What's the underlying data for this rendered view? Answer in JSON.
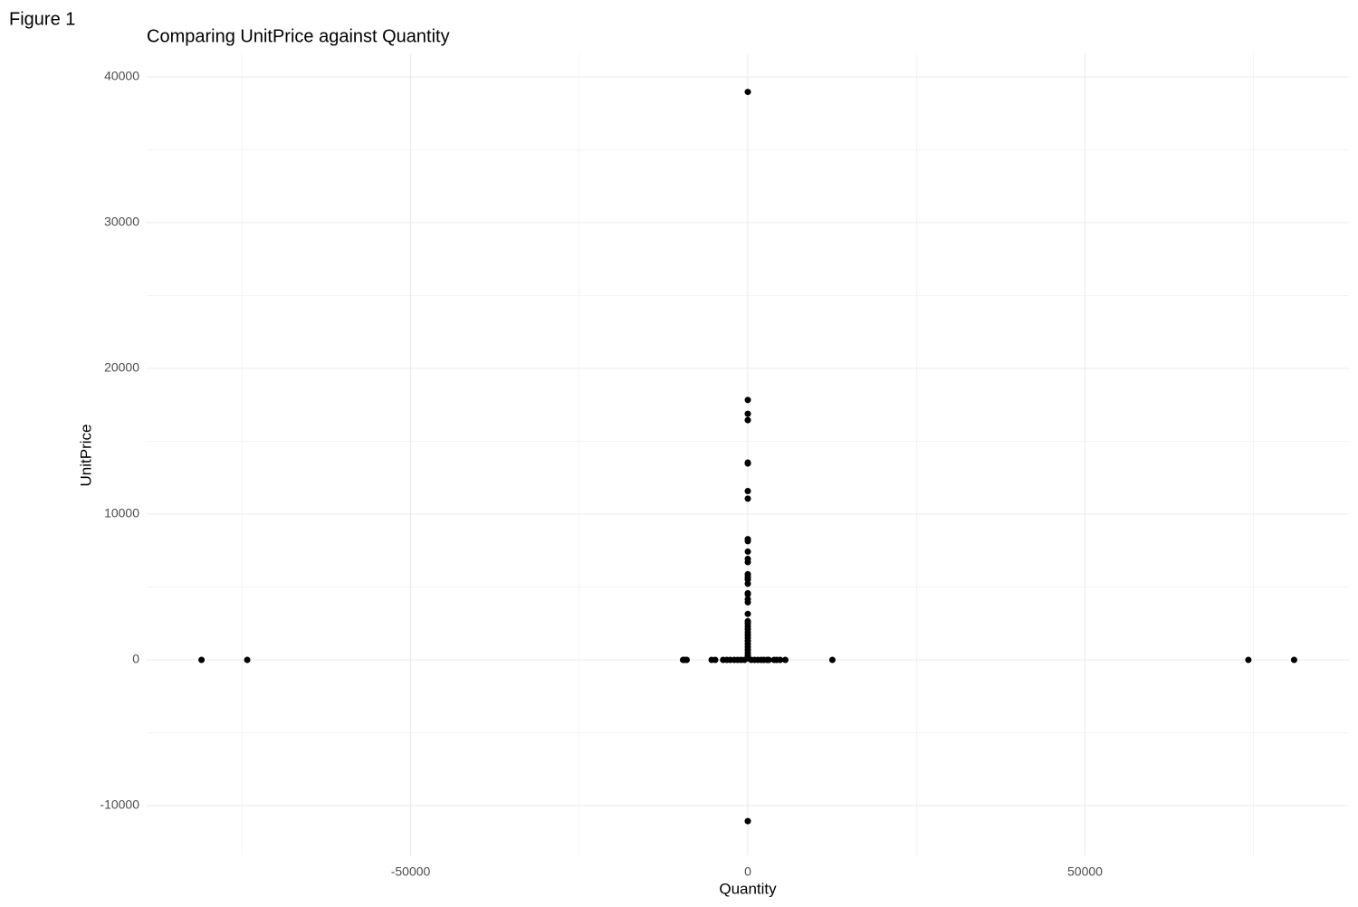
{
  "figure_label": "Figure 1",
  "chart_data": {
    "type": "scatter",
    "title": "Comparing UnitPrice against Quantity",
    "x_label": "Quantity",
    "y_label": "UnitPrice",
    "color": "#000000",
    "grid": true,
    "xlim": [
      -89128,
      89128
    ],
    "ylim": [
      -13416,
      41553
    ],
    "xticks": [
      -50000,
      0,
      50000
    ],
    "yticks": [
      -10000,
      0,
      10000,
      20000,
      30000,
      40000
    ],
    "x_minor_grid": [
      -75000,
      -25000,
      25000,
      75000
    ],
    "y_minor_grid": [
      -5000,
      5000,
      15000,
      25000,
      35000
    ],
    "x": [
      0,
      0,
      0,
      0,
      0,
      0,
      0,
      0,
      0,
      0,
      0,
      0,
      0,
      0,
      0,
      0,
      0,
      0,
      0,
      0,
      0,
      0,
      0,
      0,
      0,
      0,
      0,
      0,
      0,
      0,
      0,
      0,
      0,
      0,
      0,
      0,
      0,
      -80995,
      -74215,
      80995,
      74215,
      12540,
      -9600,
      -9360,
      -9058,
      -5368,
      -4830,
      -3667,
      -3114,
      -2600,
      -2000,
      -1500,
      -1000,
      -500,
      500,
      1000,
      1500,
      2000,
      2400,
      2880,
      3114,
      3906,
      4300,
      4800,
      5568
    ],
    "y": [
      38970,
      -11062,
      17836,
      16888,
      16453,
      13541,
      13474,
      11586,
      11062,
      8286,
      8142,
      7427,
      6930,
      6706,
      5877,
      5693,
      5522,
      5225,
      4575,
      4505,
      4161,
      3949,
      3155,
      2653,
      2500,
      2300,
      2100,
      1900,
      1700,
      1500,
      1300,
      1100,
      900,
      700,
      500,
      300,
      100,
      0,
      0,
      0,
      0,
      0,
      0,
      0,
      0,
      0,
      0,
      0,
      0,
      0,
      0,
      0,
      0,
      0,
      0,
      0,
      0,
      0,
      0,
      0,
      0,
      0,
      0,
      0,
      0
    ]
  }
}
